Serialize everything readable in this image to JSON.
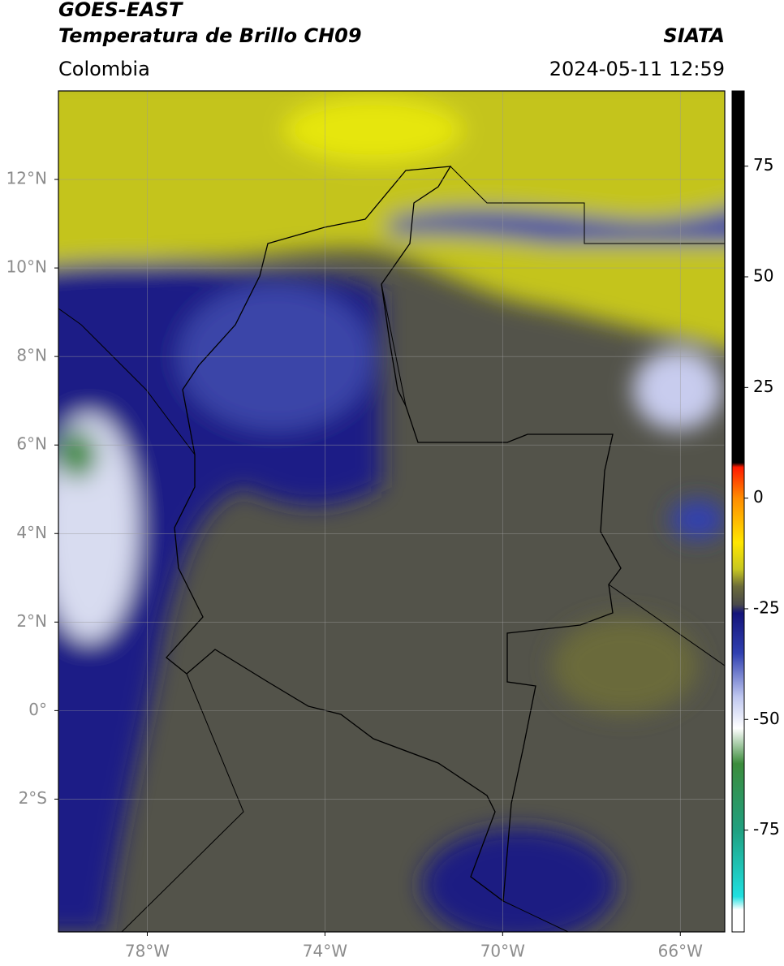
{
  "header": {
    "title": "GOES-EAST",
    "subtitle": "Temperatura de Brillo CH09",
    "source": "SIATA",
    "region": "Colombia",
    "datetime": "2024-05-11 12:59"
  },
  "chart_data": {
    "type": "map",
    "xlim": [
      -80,
      -65
    ],
    "ylim": [
      -5,
      14
    ],
    "xticks": [
      {
        "value": -78,
        "label": "78°W"
      },
      {
        "value": -74,
        "label": "74°W"
      },
      {
        "value": -70,
        "label": "70°W"
      },
      {
        "value": -66,
        "label": "66°W"
      }
    ],
    "yticks": [
      {
        "value": 12,
        "label": "12°N"
      },
      {
        "value": 10,
        "label": "10°N"
      },
      {
        "value": 8,
        "label": "8°N"
      },
      {
        "value": 6,
        "label": "6°N"
      },
      {
        "value": 4,
        "label": "4°N"
      },
      {
        "value": 2,
        "label": "2°N"
      },
      {
        "value": 0,
        "label": "0°"
      },
      {
        "value": -2,
        "label": "2°S"
      }
    ],
    "grid": true,
    "colorbar": {
      "lim": [
        -98,
        92
      ],
      "ticks": [
        75,
        50,
        25,
        0,
        -25,
        -50,
        -75
      ],
      "stops": [
        {
          "value": 92,
          "color": "#000000"
        },
        {
          "value": 8,
          "color": "#000000"
        },
        {
          "value": 7,
          "color": "#ff1a00"
        },
        {
          "value": 0,
          "color": "#ff8c00"
        },
        {
          "value": -10,
          "color": "#ffe600"
        },
        {
          "value": -16,
          "color": "#c8c820"
        },
        {
          "value": -20,
          "color": "#6b6b3a"
        },
        {
          "value": -24,
          "color": "#4a4a4a"
        },
        {
          "value": -26,
          "color": "#14147a"
        },
        {
          "value": -35,
          "color": "#3040b0"
        },
        {
          "value": -45,
          "color": "#c0c8f0"
        },
        {
          "value": -52,
          "color": "#ffffff"
        },
        {
          "value": -60,
          "color": "#3c8c3c"
        },
        {
          "value": -75,
          "color": "#20a080"
        },
        {
          "value": -90,
          "color": "#20e0e0"
        },
        {
          "value": -93,
          "color": "#ffffff"
        },
        {
          "value": -98,
          "color": "#ffffff"
        }
      ]
    }
  }
}
